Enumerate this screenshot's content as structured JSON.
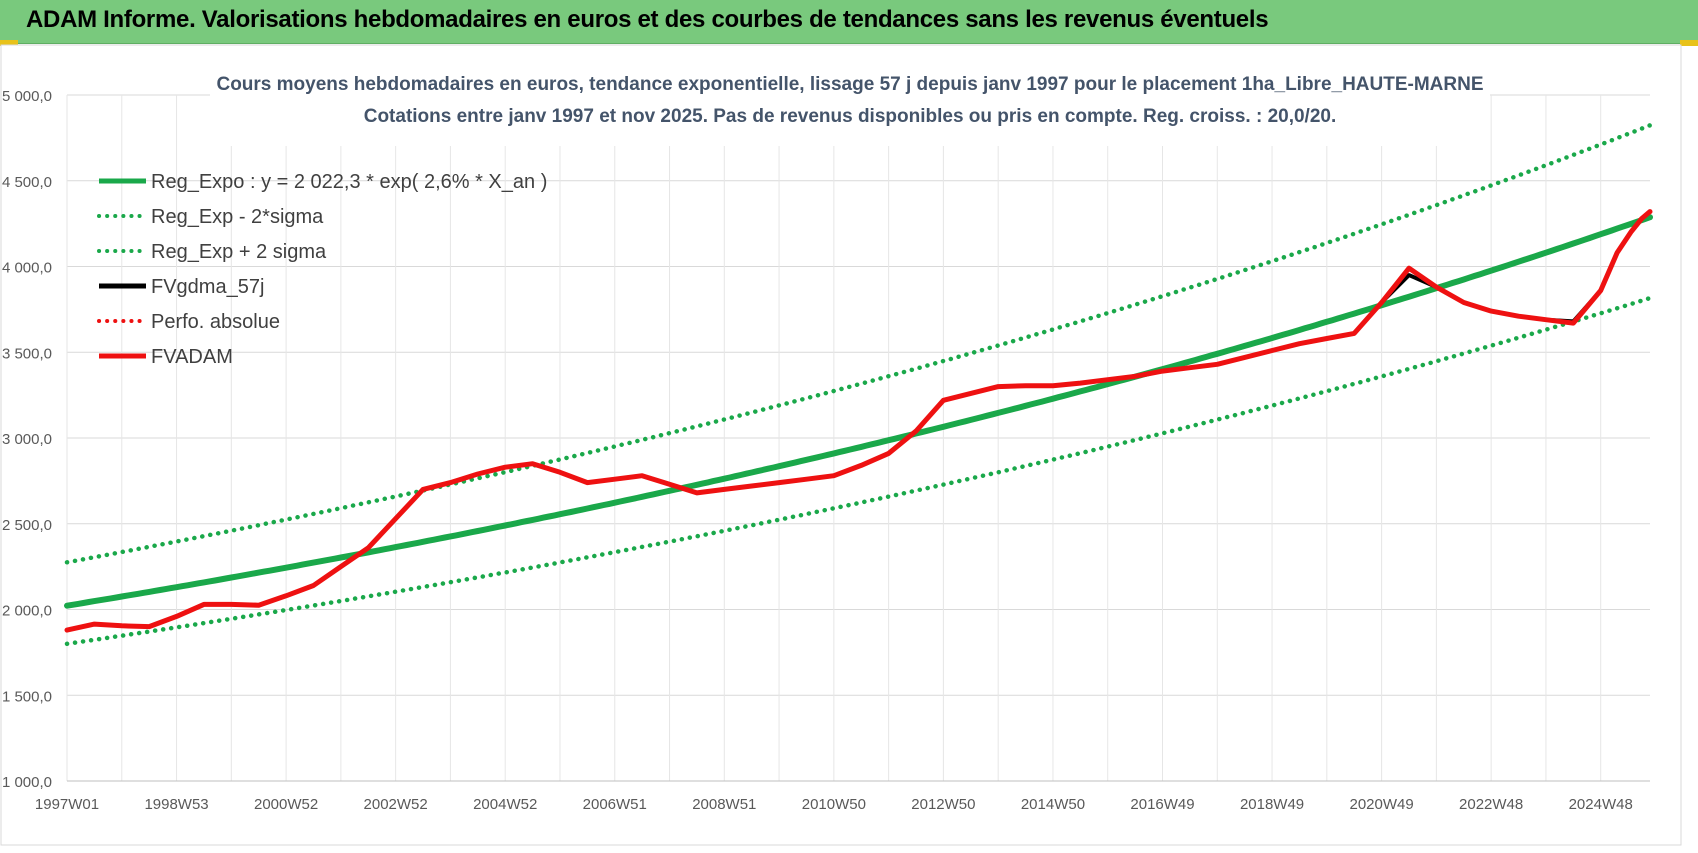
{
  "header": {
    "title": "ADAM Informe. Valorisations hebdomadaires en euros et des courbes de tendances sans les revenus éventuels"
  },
  "colors": {
    "header_bg": "#79c97d",
    "trend_green": "#1aa84a",
    "adam_red": "#ee1111",
    "fv_black": "#000000"
  },
  "chart_data": {
    "type": "line",
    "title": "Cours moyens hebdomadaires en euros, tendance exponentielle, lissage 57 j depuis janv 1997 pour le placement 1ha_Libre_HAUTE-MARNE",
    "subtitle": "Cotations entre janv 1997 et nov 2025. Pas de revenus disponibles ou pris en compte. Reg. croiss. : 20,0/20.",
    "ylim": [
      1000,
      5000
    ],
    "xlim": [
      1997.0,
      2025.9
    ],
    "y_ticks": [
      {
        "v": 1000,
        "label": "1 000,0"
      },
      {
        "v": 1500,
        "label": "1 500,0"
      },
      {
        "v": 2000,
        "label": "2 000,0"
      },
      {
        "v": 2500,
        "label": "2 500,0"
      },
      {
        "v": 3000,
        "label": "3 000,0"
      },
      {
        "v": 3500,
        "label": "3 500,0"
      },
      {
        "v": 4000,
        "label": "4 000,0"
      },
      {
        "v": 4500,
        "label": "4 500,0"
      },
      {
        "v": 5000,
        "label": "5 000,0"
      }
    ],
    "x_ticks": [
      {
        "t": 1997.0,
        "label": "1997W01"
      },
      {
        "t": 1999.0,
        "label": "1998W53"
      },
      {
        "t": 2001.0,
        "label": "2000W52"
      },
      {
        "t": 2003.0,
        "label": "2002W52"
      },
      {
        "t": 2005.0,
        "label": "2004W52"
      },
      {
        "t": 2007.0,
        "label": "2006W51"
      },
      {
        "t": 2009.0,
        "label": "2008W51"
      },
      {
        "t": 2011.0,
        "label": "2010W50"
      },
      {
        "t": 2013.0,
        "label": "2012W50"
      },
      {
        "t": 2015.0,
        "label": "2014W50"
      },
      {
        "t": 2017.0,
        "label": "2016W49"
      },
      {
        "t": 2019.0,
        "label": "2018W49"
      },
      {
        "t": 2021.0,
        "label": "2020W49"
      },
      {
        "t": 2023.0,
        "label": "2022W48"
      },
      {
        "t": 2025.0,
        "label": "2024W48"
      }
    ],
    "grid": true,
    "legend_position": "top-left",
    "trend": {
      "a": 2022.3,
      "rate": 0.026,
      "sigma2_low": 0.89,
      "sigma2_high": 1.125
    },
    "series": [
      {
        "name": "Reg_Expo : y = 2 022,3 * exp( 2,6% *  X_an )",
        "color": "#1aa84a",
        "style": "solid",
        "kind": "trend"
      },
      {
        "name": "Reg_Exp - 2*sigma",
        "color": "#1aa84a",
        "style": "dotted",
        "kind": "low"
      },
      {
        "name": "Reg_Exp + 2 sigma",
        "color": "#1aa84a",
        "style": "dotted",
        "kind": "high"
      },
      {
        "name": "FVgdma_57j",
        "color": "#000000",
        "style": "solid",
        "kind": "data",
        "points": [
          [
            1997.0,
            1880
          ],
          [
            1997.5,
            1915
          ],
          [
            1998.0,
            1905
          ],
          [
            1998.5,
            1900
          ],
          [
            1999.0,
            1960
          ],
          [
            1999.5,
            2030
          ],
          [
            2000.0,
            2030
          ],
          [
            2000.5,
            2025
          ],
          [
            2001.0,
            2080
          ],
          [
            2001.5,
            2140
          ],
          [
            2002.0,
            2250
          ],
          [
            2002.5,
            2360
          ],
          [
            2003.0,
            2530
          ],
          [
            2003.5,
            2700
          ],
          [
            2004.0,
            2740
          ],
          [
            2004.5,
            2790
          ],
          [
            2005.0,
            2830
          ],
          [
            2005.5,
            2850
          ],
          [
            2006.0,
            2800
          ],
          [
            2006.5,
            2740
          ],
          [
            2007.0,
            2760
          ],
          [
            2007.5,
            2780
          ],
          [
            2008.0,
            2730
          ],
          [
            2008.5,
            2680
          ],
          [
            2009.0,
            2700
          ],
          [
            2009.5,
            2720
          ],
          [
            2010.0,
            2740
          ],
          [
            2010.5,
            2760
          ],
          [
            2011.0,
            2780
          ],
          [
            2011.5,
            2840
          ],
          [
            2012.0,
            2910
          ],
          [
            2012.5,
            3040
          ],
          [
            2013.0,
            3220
          ],
          [
            2013.5,
            3260
          ],
          [
            2014.0,
            3300
          ],
          [
            2014.5,
            3305
          ],
          [
            2015.0,
            3305
          ],
          [
            2015.5,
            3320
          ],
          [
            2016.0,
            3340
          ],
          [
            2016.5,
            3360
          ],
          [
            2017.0,
            3390
          ],
          [
            2017.5,
            3410
          ],
          [
            2018.0,
            3430
          ],
          [
            2018.5,
            3470
          ],
          [
            2019.0,
            3510
          ],
          [
            2019.5,
            3550
          ],
          [
            2020.0,
            3580
          ],
          [
            2020.5,
            3610
          ],
          [
            2021.0,
            3790
          ],
          [
            2021.5,
            3950
          ],
          [
            2022.0,
            3880
          ],
          [
            2022.5,
            3790
          ],
          [
            2023.0,
            3740
          ],
          [
            2023.5,
            3710
          ],
          [
            2024.0,
            3690
          ],
          [
            2024.5,
            3680
          ],
          [
            2025.0,
            3860
          ],
          [
            2025.3,
            4080
          ],
          [
            2025.55,
            4200
          ],
          [
            2025.75,
            4280
          ],
          [
            2025.9,
            4320
          ]
        ]
      },
      {
        "name": "Perfo. absolue",
        "color": "#ee1111",
        "style": "dotted",
        "kind": "data",
        "points": [
          [
            1997.0,
            1880
          ],
          [
            1997.5,
            1915
          ],
          [
            1998.0,
            1905
          ],
          [
            1998.5,
            1900
          ],
          [
            1999.0,
            1960
          ],
          [
            1999.5,
            2030
          ],
          [
            2000.0,
            2030
          ],
          [
            2000.5,
            2025
          ],
          [
            2001.0,
            2080
          ],
          [
            2001.5,
            2140
          ],
          [
            2002.0,
            2250
          ],
          [
            2002.5,
            2360
          ],
          [
            2003.0,
            2530
          ],
          [
            2003.5,
            2700
          ],
          [
            2004.0,
            2740
          ],
          [
            2004.5,
            2790
          ],
          [
            2005.0,
            2830
          ],
          [
            2005.5,
            2850
          ],
          [
            2006.0,
            2800
          ],
          [
            2006.5,
            2740
          ],
          [
            2007.0,
            2760
          ],
          [
            2007.5,
            2780
          ],
          [
            2008.0,
            2730
          ],
          [
            2008.5,
            2680
          ],
          [
            2009.0,
            2700
          ],
          [
            2009.5,
            2720
          ],
          [
            2010.0,
            2740
          ],
          [
            2010.5,
            2760
          ],
          [
            2011.0,
            2780
          ],
          [
            2011.5,
            2840
          ],
          [
            2012.0,
            2910
          ],
          [
            2012.5,
            3040
          ],
          [
            2013.0,
            3220
          ],
          [
            2013.5,
            3260
          ],
          [
            2014.0,
            3300
          ],
          [
            2014.5,
            3305
          ],
          [
            2015.0,
            3305
          ],
          [
            2015.5,
            3320
          ],
          [
            2016.0,
            3340
          ],
          [
            2016.5,
            3360
          ],
          [
            2017.0,
            3390
          ],
          [
            2017.5,
            3410
          ],
          [
            2018.0,
            3430
          ],
          [
            2018.5,
            3470
          ],
          [
            2019.0,
            3510
          ],
          [
            2019.5,
            3550
          ],
          [
            2020.0,
            3580
          ],
          [
            2020.5,
            3610
          ],
          [
            2021.0,
            3790
          ],
          [
            2021.5,
            3990
          ],
          [
            2022.0,
            3880
          ],
          [
            2022.5,
            3790
          ],
          [
            2023.0,
            3740
          ],
          [
            2023.5,
            3710
          ],
          [
            2024.0,
            3690
          ],
          [
            2024.5,
            3670
          ],
          [
            2025.0,
            3860
          ],
          [
            2025.3,
            4080
          ],
          [
            2025.55,
            4200
          ],
          [
            2025.75,
            4280
          ],
          [
            2025.9,
            4320
          ]
        ]
      },
      {
        "name": "FVADAM",
        "color": "#ee1111",
        "style": "solid",
        "kind": "data",
        "points": [
          [
            1997.0,
            1880
          ],
          [
            1997.5,
            1915
          ],
          [
            1998.0,
            1905
          ],
          [
            1998.5,
            1900
          ],
          [
            1999.0,
            1960
          ],
          [
            1999.5,
            2030
          ],
          [
            2000.0,
            2030
          ],
          [
            2000.5,
            2025
          ],
          [
            2001.0,
            2080
          ],
          [
            2001.5,
            2140
          ],
          [
            2002.0,
            2250
          ],
          [
            2002.5,
            2360
          ],
          [
            2003.0,
            2530
          ],
          [
            2003.5,
            2700
          ],
          [
            2004.0,
            2740
          ],
          [
            2004.5,
            2790
          ],
          [
            2005.0,
            2830
          ],
          [
            2005.5,
            2850
          ],
          [
            2006.0,
            2800
          ],
          [
            2006.5,
            2740
          ],
          [
            2007.0,
            2760
          ],
          [
            2007.5,
            2780
          ],
          [
            2008.0,
            2730
          ],
          [
            2008.5,
            2680
          ],
          [
            2009.0,
            2700
          ],
          [
            2009.5,
            2720
          ],
          [
            2010.0,
            2740
          ],
          [
            2010.5,
            2760
          ],
          [
            2011.0,
            2780
          ],
          [
            2011.5,
            2840
          ],
          [
            2012.0,
            2910
          ],
          [
            2012.5,
            3040
          ],
          [
            2013.0,
            3220
          ],
          [
            2013.5,
            3260
          ],
          [
            2014.0,
            3300
          ],
          [
            2014.5,
            3305
          ],
          [
            2015.0,
            3305
          ],
          [
            2015.5,
            3320
          ],
          [
            2016.0,
            3340
          ],
          [
            2016.5,
            3360
          ],
          [
            2017.0,
            3390
          ],
          [
            2017.5,
            3410
          ],
          [
            2018.0,
            3430
          ],
          [
            2018.5,
            3470
          ],
          [
            2019.0,
            3510
          ],
          [
            2019.5,
            3550
          ],
          [
            2020.0,
            3580
          ],
          [
            2020.5,
            3610
          ],
          [
            2021.0,
            3790
          ],
          [
            2021.5,
            3990
          ],
          [
            2022.0,
            3880
          ],
          [
            2022.5,
            3790
          ],
          [
            2023.0,
            3740
          ],
          [
            2023.5,
            3710
          ],
          [
            2024.0,
            3690
          ],
          [
            2024.5,
            3670
          ],
          [
            2025.0,
            3860
          ],
          [
            2025.3,
            4080
          ],
          [
            2025.55,
            4200
          ],
          [
            2025.75,
            4280
          ],
          [
            2025.9,
            4320
          ]
        ]
      }
    ]
  }
}
